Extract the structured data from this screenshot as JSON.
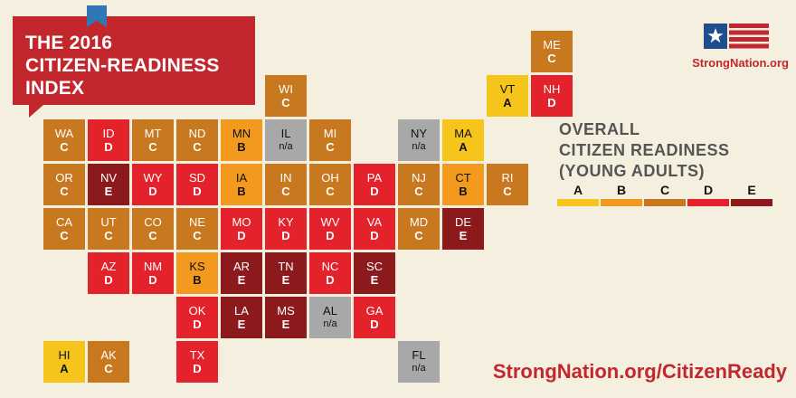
{
  "title": {
    "lines": [
      "THE 2016",
      "CITIZEN-READINESS",
      "INDEX"
    ]
  },
  "logo": {
    "text": "StrongNation.org",
    "icon": "flag-icon"
  },
  "legend": {
    "title_lines": [
      "OVERALL",
      "CITIZEN READINESS",
      "(YOUNG ADULTS)"
    ],
    "grades": [
      {
        "label": "A",
        "color": "#f5c51c"
      },
      {
        "label": "B",
        "color": "#f39a1e"
      },
      {
        "label": "C",
        "color": "#c8781f"
      },
      {
        "label": "D",
        "color": "#e3222b"
      },
      {
        "label": "E",
        "color": "#8c1a1c"
      }
    ]
  },
  "na_color": "#a8a8a8",
  "footer_url": "StrongNation.org/CitizenReady",
  "map_type": "tile grid map of U.S. states",
  "states": [
    {
      "abbr": "ME",
      "grade": "C",
      "col": 11,
      "row": 0
    },
    {
      "abbr": "WI",
      "grade": "C",
      "col": 5,
      "row": 1
    },
    {
      "abbr": "VT",
      "grade": "A",
      "col": 10,
      "row": 1
    },
    {
      "abbr": "NH",
      "grade": "D",
      "col": 11,
      "row": 1
    },
    {
      "abbr": "WA",
      "grade": "C",
      "col": 0,
      "row": 2
    },
    {
      "abbr": "ID",
      "grade": "D",
      "col": 1,
      "row": 2
    },
    {
      "abbr": "MT",
      "grade": "C",
      "col": 2,
      "row": 2
    },
    {
      "abbr": "ND",
      "grade": "C",
      "col": 3,
      "row": 2
    },
    {
      "abbr": "MN",
      "grade": "B",
      "col": 4,
      "row": 2
    },
    {
      "abbr": "IL",
      "grade": "n/a",
      "col": 5,
      "row": 2
    },
    {
      "abbr": "MI",
      "grade": "C",
      "col": 6,
      "row": 2
    },
    {
      "abbr": "NY",
      "grade": "n/a",
      "col": 8,
      "row": 2
    },
    {
      "abbr": "MA",
      "grade": "A",
      "col": 9,
      "row": 2
    },
    {
      "abbr": "OR",
      "grade": "C",
      "col": 0,
      "row": 3
    },
    {
      "abbr": "NV",
      "grade": "E",
      "col": 1,
      "row": 3
    },
    {
      "abbr": "WY",
      "grade": "D",
      "col": 2,
      "row": 3
    },
    {
      "abbr": "SD",
      "grade": "D",
      "col": 3,
      "row": 3
    },
    {
      "abbr": "IA",
      "grade": "B",
      "col": 4,
      "row": 3
    },
    {
      "abbr": "IN",
      "grade": "C",
      "col": 5,
      "row": 3
    },
    {
      "abbr": "OH",
      "grade": "C",
      "col": 6,
      "row": 3
    },
    {
      "abbr": "PA",
      "grade": "D",
      "col": 7,
      "row": 3
    },
    {
      "abbr": "NJ",
      "grade": "C",
      "col": 8,
      "row": 3
    },
    {
      "abbr": "CT",
      "grade": "B",
      "col": 9,
      "row": 3
    },
    {
      "abbr": "RI",
      "grade": "C",
      "col": 10,
      "row": 3
    },
    {
      "abbr": "CA",
      "grade": "C",
      "col": 0,
      "row": 4
    },
    {
      "abbr": "UT",
      "grade": "C",
      "col": 1,
      "row": 4
    },
    {
      "abbr": "CO",
      "grade": "C",
      "col": 2,
      "row": 4
    },
    {
      "abbr": "NE",
      "grade": "C",
      "col": 3,
      "row": 4
    },
    {
      "abbr": "MO",
      "grade": "D",
      "col": 4,
      "row": 4
    },
    {
      "abbr": "KY",
      "grade": "D",
      "col": 5,
      "row": 4
    },
    {
      "abbr": "WV",
      "grade": "D",
      "col": 6,
      "row": 4
    },
    {
      "abbr": "VA",
      "grade": "D",
      "col": 7,
      "row": 4
    },
    {
      "abbr": "MD",
      "grade": "C",
      "col": 8,
      "row": 4
    },
    {
      "abbr": "DE",
      "grade": "E",
      "col": 9,
      "row": 4
    },
    {
      "abbr": "AZ",
      "grade": "D",
      "col": 1,
      "row": 5
    },
    {
      "abbr": "NM",
      "grade": "D",
      "col": 2,
      "row": 5
    },
    {
      "abbr": "KS",
      "grade": "B",
      "col": 3,
      "row": 5
    },
    {
      "abbr": "AR",
      "grade": "E",
      "col": 4,
      "row": 5
    },
    {
      "abbr": "TN",
      "grade": "E",
      "col": 5,
      "row": 5
    },
    {
      "abbr": "NC",
      "grade": "D",
      "col": 6,
      "row": 5
    },
    {
      "abbr": "SC",
      "grade": "E",
      "col": 7,
      "row": 5
    },
    {
      "abbr": "OK",
      "grade": "D",
      "col": 3,
      "row": 6
    },
    {
      "abbr": "LA",
      "grade": "E",
      "col": 4,
      "row": 6
    },
    {
      "abbr": "MS",
      "grade": "E",
      "col": 5,
      "row": 6
    },
    {
      "abbr": "AL",
      "grade": "n/a",
      "col": 6,
      "row": 6
    },
    {
      "abbr": "GA",
      "grade": "D",
      "col": 7,
      "row": 6
    },
    {
      "abbr": "HI",
      "grade": "A",
      "col": 0,
      "row": 7
    },
    {
      "abbr": "AK",
      "grade": "C",
      "col": 1,
      "row": 7
    },
    {
      "abbr": "TX",
      "grade": "D",
      "col": 3,
      "row": 7
    },
    {
      "abbr": "FL",
      "grade": "n/a",
      "col": 8,
      "row": 7
    }
  ]
}
